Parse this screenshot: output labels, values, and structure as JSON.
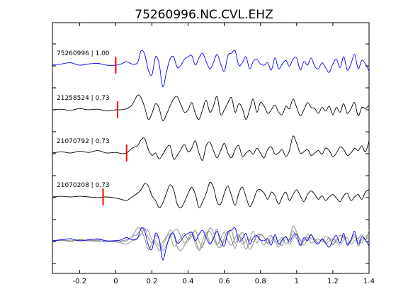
{
  "chart_data": {
    "type": "line",
    "title": "75260996.NC.CVL.EHZ",
    "xlabel": "",
    "ylabel": "",
    "xlim": [
      -0.35,
      1.4
    ],
    "xticks": [
      -0.2,
      0,
      0.2,
      0.4,
      0.6,
      0.8,
      1,
      1.2,
      1.4
    ],
    "xtick_labels": [
      "-0.2",
      "0",
      "0.2",
      "0.4",
      "0.6",
      "0.8",
      "1",
      "1.2",
      "1.4"
    ],
    "grid": false,
    "legend": "none",
    "colors": {
      "master": "#0000ff",
      "other": "#000000",
      "overlay_other": "#888888",
      "pick": "#ff0000"
    },
    "series": [
      {
        "label": "75260996 | 1.00",
        "color": "#0000ff",
        "pick_x": 0.0,
        "x": [
          -0.35,
          -0.3,
          -0.25,
          -0.2,
          -0.15,
          -0.1,
          -0.05,
          0.0,
          0.03,
          0.06,
          0.09,
          0.12,
          0.14,
          0.16,
          0.18,
          0.2,
          0.22,
          0.24,
          0.26,
          0.28,
          0.3,
          0.32,
          0.34,
          0.36,
          0.38,
          0.4,
          0.42,
          0.44,
          0.46,
          0.48,
          0.5,
          0.52,
          0.54,
          0.56,
          0.58,
          0.6,
          0.62,
          0.64,
          0.66,
          0.68,
          0.7,
          0.72,
          0.74,
          0.76,
          0.78,
          0.8,
          0.82,
          0.84,
          0.86,
          0.88,
          0.9,
          0.92,
          0.94,
          0.96,
          0.98,
          1.0,
          1.02,
          1.04,
          1.06,
          1.08,
          1.1,
          1.12,
          1.14,
          1.16,
          1.18,
          1.2,
          1.22,
          1.24,
          1.26,
          1.28,
          1.3,
          1.32,
          1.34,
          1.36,
          1.38,
          1.4
        ],
        "y": [
          0.0,
          0.1,
          0.2,
          0.0,
          0.1,
          0.15,
          0.0,
          0.0,
          0.1,
          0.3,
          0.1,
          0.2,
          1.2,
          0.9,
          -0.4,
          -0.8,
          0.7,
          0.1,
          -1.8,
          -0.6,
          0.5,
          0.7,
          -0.2,
          0.0,
          0.5,
          0.7,
          0.8,
          0.0,
          0.6,
          1.0,
          0.3,
          -0.3,
          0.2,
          0.9,
          0.1,
          -0.5,
          0.8,
          1.0,
          1.2,
          0.0,
          0.2,
          0.7,
          -0.3,
          0.3,
          0.5,
          0.1,
          0.0,
          0.2,
          -0.4,
          0.6,
          -0.3,
          0.1,
          0.4,
          -0.1,
          0.5,
          0.6,
          -0.4,
          0.3,
          0.0,
          0.6,
          -0.1,
          -0.3,
          0.2,
          -0.2,
          -0.6,
          0.1,
          0.5,
          -0.2,
          0.7,
          -0.4,
          0.1,
          0.9,
          -0.3,
          0.4,
          0.1,
          -0.5
        ]
      },
      {
        "label": "21258524 | 0.73",
        "color": "#000000",
        "pick_x": 0.01,
        "x": [
          -0.35,
          -0.3,
          -0.25,
          -0.2,
          -0.15,
          -0.1,
          -0.05,
          0.0,
          0.03,
          0.06,
          0.09,
          0.12,
          0.14,
          0.16,
          0.18,
          0.2,
          0.22,
          0.24,
          0.26,
          0.28,
          0.3,
          0.32,
          0.34,
          0.36,
          0.38,
          0.4,
          0.42,
          0.44,
          0.46,
          0.48,
          0.5,
          0.52,
          0.54,
          0.56,
          0.58,
          0.6,
          0.62,
          0.64,
          0.66,
          0.68,
          0.7,
          0.72,
          0.74,
          0.76,
          0.78,
          0.8,
          0.82,
          0.84,
          0.86,
          0.88,
          0.9,
          0.92,
          0.94,
          0.96,
          0.98,
          1.0,
          1.02,
          1.04,
          1.06,
          1.08,
          1.1,
          1.12,
          1.14,
          1.16,
          1.18,
          1.2,
          1.22,
          1.24,
          1.26,
          1.28,
          1.3,
          1.32,
          1.34,
          1.36,
          1.38,
          1.4
        ],
        "y": [
          0.0,
          0.05,
          -0.05,
          0.1,
          0.0,
          0.05,
          -0.1,
          0.0,
          0.0,
          0.1,
          0.4,
          1.2,
          1.0,
          0.2,
          -0.8,
          -0.3,
          0.5,
          0.1,
          -0.9,
          -0.4,
          0.3,
          0.9,
          1.1,
          0.4,
          -0.2,
          0.0,
          0.6,
          -0.3,
          -0.8,
          0.0,
          0.8,
          -0.2,
          0.3,
          1.1,
          -0.4,
          0.0,
          0.6,
          1.0,
          -0.2,
          0.5,
          0.1,
          -0.8,
          0.0,
          0.9,
          -0.2,
          0.6,
          0.3,
          -0.3,
          0.0,
          0.4,
          -0.2,
          -0.4,
          0.3,
          0.1,
          0.9,
          0.2,
          -0.5,
          0.0,
          0.6,
          0.2,
          0.1,
          -0.3,
          0.2,
          -0.1,
          0.3,
          -0.4,
          0.2,
          -0.2,
          0.5,
          -0.3,
          0.1,
          0.6,
          -0.5,
          0.2,
          0.1,
          0.4
        ]
      },
      {
        "label": "21070792 | 0.73",
        "color": "#000000",
        "pick_x": 0.06,
        "x": [
          -0.35,
          -0.3,
          -0.25,
          -0.2,
          -0.15,
          -0.1,
          -0.05,
          0.0,
          0.03,
          0.06,
          0.09,
          0.12,
          0.14,
          0.16,
          0.18,
          0.2,
          0.22,
          0.24,
          0.26,
          0.28,
          0.3,
          0.32,
          0.34,
          0.36,
          0.38,
          0.4,
          0.42,
          0.44,
          0.46,
          0.48,
          0.5,
          0.52,
          0.54,
          0.56,
          0.58,
          0.6,
          0.62,
          0.64,
          0.66,
          0.68,
          0.7,
          0.72,
          0.74,
          0.76,
          0.78,
          0.8,
          0.82,
          0.84,
          0.86,
          0.88,
          0.9,
          0.92,
          0.94,
          0.96,
          0.98,
          1.0,
          1.02,
          1.04,
          1.06,
          1.08,
          1.1,
          1.12,
          1.14,
          1.16,
          1.18,
          1.2,
          1.22,
          1.24,
          1.26,
          1.28,
          1.3,
          1.32,
          1.34,
          1.36,
          1.38,
          1.4
        ],
        "y": [
          0.0,
          0.1,
          0.0,
          0.15,
          0.05,
          0.2,
          0.0,
          0.05,
          -0.05,
          0.0,
          0.4,
          0.6,
          1.1,
          1.2,
          0.3,
          -0.2,
          0.0,
          -0.5,
          -0.1,
          0.4,
          0.6,
          -0.5,
          -0.2,
          0.3,
          0.7,
          0.1,
          0.4,
          1.0,
          0.0,
          -0.6,
          0.6,
          0.9,
          0.2,
          -0.4,
          0.2,
          0.8,
          0.0,
          -0.4,
          0.3,
          0.6,
          -0.3,
          0.0,
          0.2,
          -0.1,
          0.4,
          0.0,
          -0.4,
          0.3,
          0.5,
          -0.1,
          0.0,
          0.3,
          -0.3,
          0.2,
          1.4,
          0.8,
          0.0,
          0.1,
          0.3,
          -0.2,
          0.0,
          0.2,
          -0.1,
          0.4,
          0.2,
          -0.3,
          0.0,
          0.5,
          0.3,
          -0.2,
          0.0,
          0.4,
          0.2,
          0.6,
          0.1,
          1.0
        ]
      },
      {
        "label": "21070208 | 0.73",
        "color": "#000000",
        "pick_x": -0.07,
        "x": [
          -0.35,
          -0.3,
          -0.25,
          -0.2,
          -0.15,
          -0.1,
          -0.05,
          0.0,
          0.03,
          0.06,
          0.09,
          0.12,
          0.14,
          0.16,
          0.18,
          0.2,
          0.22,
          0.24,
          0.26,
          0.28,
          0.3,
          0.32,
          0.34,
          0.36,
          0.38,
          0.4,
          0.42,
          0.44,
          0.46,
          0.48,
          0.5,
          0.52,
          0.54,
          0.56,
          0.58,
          0.6,
          0.62,
          0.64,
          0.66,
          0.68,
          0.7,
          0.72,
          0.74,
          0.76,
          0.78,
          0.8,
          0.82,
          0.84,
          0.86,
          0.88,
          0.9,
          0.92,
          0.94,
          0.96,
          0.98,
          1.0,
          1.02,
          1.04,
          1.06,
          1.08,
          1.1,
          1.12,
          1.14,
          1.16,
          1.18,
          1.2,
          1.22,
          1.24,
          1.26,
          1.28,
          1.3,
          1.32,
          1.34,
          1.36,
          1.38,
          1.4
        ],
        "y": [
          0.0,
          0.05,
          0.0,
          0.05,
          0.0,
          -0.05,
          0.0,
          -0.1,
          -0.2,
          -0.3,
          0.0,
          0.3,
          0.6,
          1.1,
          0.9,
          0.1,
          -0.3,
          -0.9,
          -0.5,
          0.3,
          1.0,
          0.6,
          -0.6,
          -0.9,
          -0.4,
          0.3,
          0.8,
          0.2,
          -0.9,
          -0.4,
          0.3,
          1.2,
          0.8,
          -0.4,
          -0.6,
          0.3,
          0.9,
          0.1,
          -0.7,
          0.3,
          0.8,
          0.0,
          -0.8,
          -0.3,
          0.5,
          0.6,
          0.3,
          -0.2,
          0.4,
          0.1,
          -0.6,
          0.0,
          0.4,
          -0.3,
          0.2,
          0.6,
          0.1,
          -0.4,
          0.2,
          0.5,
          0.2,
          -0.2,
          0.1,
          -0.3,
          0.0,
          0.2,
          -0.1,
          -0.4,
          0.1,
          0.3,
          -0.3,
          0.0,
          0.2,
          -0.2,
          0.4,
          0.6
        ]
      }
    ]
  }
}
